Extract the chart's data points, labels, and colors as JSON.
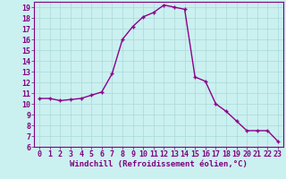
{
  "x": [
    0,
    1,
    2,
    3,
    4,
    5,
    6,
    7,
    8,
    9,
    10,
    11,
    12,
    13,
    14,
    15,
    16,
    17,
    18,
    19,
    20,
    21,
    22,
    23
  ],
  "y": [
    10.5,
    10.5,
    10.3,
    10.4,
    10.5,
    10.8,
    11.1,
    12.8,
    16.0,
    17.2,
    18.1,
    18.5,
    19.2,
    19.0,
    18.8,
    12.5,
    12.1,
    10.0,
    9.3,
    8.4,
    7.5,
    7.5,
    7.5,
    6.5
  ],
  "line_color": "#8b008b",
  "marker": "+",
  "marker_color": "#8b008b",
  "xlabel": "Windchill (Refroidissement éolien,°C)",
  "xlim": [
    -0.5,
    23.5
  ],
  "ylim": [
    6,
    19.5
  ],
  "yticks": [
    6,
    7,
    8,
    9,
    10,
    11,
    12,
    13,
    14,
    15,
    16,
    17,
    18,
    19
  ],
  "xticks": [
    0,
    1,
    2,
    3,
    4,
    5,
    6,
    7,
    8,
    9,
    10,
    11,
    12,
    13,
    14,
    15,
    16,
    17,
    18,
    19,
    20,
    21,
    22,
    23
  ],
  "bg_color": "#cbf0f0",
  "grid_color": "#aad8d8",
  "label_color": "#800080",
  "tick_color": "#800080",
  "xlabel_fontsize": 6.5,
  "tick_fontsize": 6,
  "linewidth": 1.0,
  "markersize": 3,
  "spine_color": "#800080"
}
